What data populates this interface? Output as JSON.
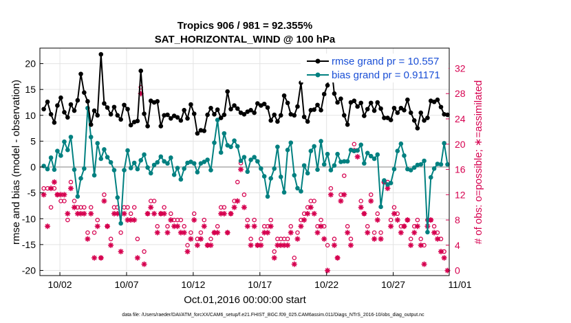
{
  "title": "Tropics 906 / 981 = 92.355%",
  "subtitle": "SAT_HORIZONTAL_WIND @ 100 hPa",
  "footer": "data file: /Users/raeder/DAI/ATM_forcXX/CAM6_setup/f.e21.FHIST_BGC.f09_025.CAM6assim.011/Diags_NTrS_2016-10/obs_diag_output.nc",
  "colors": {
    "rmse": "#000000",
    "bias": "#008080",
    "obs": "#d6004f",
    "zero_line": "#c0c0c0",
    "legend_text": "#1a4fd6"
  },
  "chart_data": {
    "type": "line",
    "xlabel": "Oct.01,2016 00:00:00 start",
    "ylabel_left": "rmse and bias (model - observation)",
    "ylabel_right": "# of obs: o=possible; ∗=assimilated",
    "xlim": [
      0.5,
      31.2
    ],
    "ylim_left": [
      -21,
      23
    ],
    "ylim_right": [
      -0.8,
      35.2
    ],
    "x_ticks": [
      {
        "v": 2,
        "label": "10/02"
      },
      {
        "v": 7,
        "label": "10/07"
      },
      {
        "v": 12,
        "label": "10/12"
      },
      {
        "v": 17,
        "label": "10/17"
      },
      {
        "v": 22,
        "label": "10/22"
      },
      {
        "v": 27,
        "label": "10/27"
      },
      {
        "v": 32,
        "label": "11/01"
      }
    ],
    "y_ticks_left": [
      -20,
      -15,
      -10,
      -5,
      0,
      5,
      10,
      15,
      20
    ],
    "y_ticks_right": [
      0,
      4,
      8,
      12,
      16,
      20,
      24,
      28,
      32
    ],
    "grid": true,
    "legend_position": "top-right",
    "x": [
      0.79,
      1.07,
      1.33,
      1.58,
      1.81,
      2.07,
      2.33,
      2.58,
      2.82,
      3.08,
      3.33,
      3.57,
      3.82,
      4.08,
      4.33,
      4.58,
      4.82,
      5.08,
      5.32,
      5.56,
      5.82,
      6.07,
      6.32,
      6.57,
      6.82,
      7.08,
      7.32,
      7.58,
      7.82,
      8.07,
      8.32,
      8.58,
      8.82,
      9.07,
      9.31,
      9.57,
      9.82,
      10.07,
      10.32,
      10.57,
      10.82,
      11.07,
      11.32,
      11.57,
      11.82,
      12.07,
      12.31,
      12.57,
      12.82,
      13.07,
      13.32,
      13.58,
      13.82,
      14.08,
      14.32,
      14.57,
      14.82,
      15.08,
      15.32,
      15.57,
      15.82,
      16.07,
      16.32,
      16.58,
      16.82,
      17.08,
      17.33,
      17.58,
      17.82,
      18.08,
      18.32,
      18.57,
      18.82,
      19.08,
      19.32,
      19.58,
      19.82,
      20.08,
      20.32,
      20.58,
      20.82,
      21.07,
      21.32,
      21.58,
      21.82,
      22.07,
      22.32,
      22.58,
      22.82,
      23.07,
      23.32,
      23.57,
      23.82,
      24.07,
      24.32,
      24.58,
      24.82,
      25.07,
      25.33,
      25.58,
      25.82,
      26.07,
      26.32,
      26.58,
      26.82,
      27.07,
      27.32,
      27.58,
      27.82,
      28.07,
      28.32,
      28.58,
      28.82,
      29.07,
      29.32,
      29.57,
      29.82,
      30.07,
      30.32,
      30.58,
      30.82,
      31.07
    ],
    "series": [
      {
        "name": "rmse grand pr = 10.557",
        "values": [
          11.2,
          12.6,
          10.2,
          8.6,
          11.9,
          13.4,
          10.6,
          9.6,
          12.1,
          10.9,
          12.9,
          18.0,
          14.4,
          12.7,
          8.2,
          10.9,
          10.0,
          21.8,
          12.3,
          11.5,
          10.2,
          11.6,
          10.0,
          9.2,
          12.0,
          11.2,
          8.1,
          8.7,
          8.9,
          18.6,
          10.3,
          7.9,
          12.8,
          12.5,
          12.7,
          7.9,
          10.0,
          10.1,
          9.4,
          9.9,
          9.6,
          9.0,
          11.0,
          9.4,
          12.1,
          10.3,
          6.5,
          7.1,
          7.0,
          10.1,
          11.4,
          10.2,
          11.1,
          9.5,
          10.1,
          14.6,
          11.2,
          11.9,
          11.3,
          10.5,
          10.2,
          10.7,
          11.0,
          10.5,
          12.3,
          11.9,
          12.2,
          11.5,
          9.0,
          10.1,
          8.8,
          10.0,
          13.8,
          12.4,
          10.2,
          10.0,
          11.7,
          16.3,
          9.7,
          8.8,
          11.0,
          11.1,
          12.0,
          11.0,
          14.1,
          15.8,
          20.6,
          14.2,
          12.5,
          13.2,
          10.0,
          8.2,
          12.5,
          12.8,
          11.7,
          12.4,
          9.9,
          11.2,
          12.4,
          10.9,
          12.5,
          11.3,
          9.5,
          9.5,
          9.1,
          11.4,
          10.5,
          11.4,
          11.0,
          13.0,
          10.5,
          9.0,
          7.5,
          10.5,
          9.0,
          9.5,
          12.8,
          12.6,
          13.0,
          11.6,
          10.2,
          10.1
        ]
      },
      {
        "name": "bias grand pr = 0.91171",
        "values": [
          0.2,
          -0.4,
          1.8,
          -0.5,
          3.1,
          2.2,
          4.9,
          3.3,
          5.8,
          -0.5,
          -5.7,
          -2.2,
          -0.3,
          11.4,
          5.8,
          -1.6,
          4.6,
          1.6,
          3.4,
          1.9,
          0.9,
          -0.6,
          -5.9,
          -10.9,
          -0.6,
          3.2,
          -0.2,
          0.8,
          -0.4,
          1.3,
          2.4,
          -0.1,
          -1.2,
          0.4,
          0.9,
          2.0,
          1.1,
          0.7,
          1.8,
          -1.5,
          -0.2,
          -2.4,
          -0.3,
          0.8,
          1.0,
          0.7,
          -1.0,
          0.7,
          1.0,
          1.4,
          -0.6,
          4.7,
          9.1,
          2.8,
          6.5,
          4.2,
          3.9,
          5.1,
          4.0,
          1.2,
          1.9,
          -0.9,
          1.4,
          1.9,
          1.1,
          -0.3,
          -1.8,
          -5.7,
          -2.2,
          -0.3,
          3.9,
          -1.9,
          -4.9,
          3.3,
          4.7,
          -1.6,
          -4.1,
          -4.7,
          0.3,
          -1.2,
          3.1,
          4.0,
          -0.5,
          5.0,
          0.5,
          2.5,
          -0.6,
          0.3,
          2.5,
          1.0,
          1.1,
          1.1,
          3.3,
          3.1,
          3.2,
          4.3,
          0.7,
          2.7,
          2.1,
          1.6,
          2.4,
          -7.7,
          -2.6,
          -3.4,
          -3.1,
          -0.4,
          3.1,
          4.5,
          2.2,
          -0.4,
          -0.6,
          -0.1,
          0.4,
          0.5,
          1.2,
          -12.6,
          -2.0,
          -0.3,
          0.6,
          0.5,
          4.6,
          0.5
        ]
      }
    ],
    "obs_possible": [
      {
        "x": 0.79,
        "y": 13
      },
      {
        "x": 1.07,
        "y": 13
      },
      {
        "x": 1.33,
        "y": 10
      },
      {
        "x": 1.58,
        "y": 13
      },
      {
        "x": 1.81,
        "y": 12
      },
      {
        "x": 2.07,
        "y": 11
      },
      {
        "x": 2.33,
        "y": 11
      },
      {
        "x": 2.58,
        "y": 8
      },
      {
        "x": 2.82,
        "y": 14
      },
      {
        "x": 3.08,
        "y": 11
      },
      {
        "x": 3.33,
        "y": 10
      },
      {
        "x": 3.57,
        "y": 10
      },
      {
        "x": 3.82,
        "y": 10
      },
      {
        "x": 4.08,
        "y": 6
      },
      {
        "x": 4.33,
        "y": 10
      },
      {
        "x": 4.58,
        "y": 6
      },
      {
        "x": 4.82,
        "y": 8
      },
      {
        "x": 5.08,
        "y": 2
      },
      {
        "x": 5.32,
        "y": 12
      },
      {
        "x": 5.56,
        "y": 7
      },
      {
        "x": 5.82,
        "y": 5
      },
      {
        "x": 6.07,
        "y": 10
      },
      {
        "x": 6.32,
        "y": 10
      },
      {
        "x": 6.57,
        "y": 6
      },
      {
        "x": 6.82,
        "y": 10
      },
      {
        "x": 7.08,
        "y": 10
      },
      {
        "x": 7.32,
        "y": 9
      },
      {
        "x": 7.58,
        "y": 10
      },
      {
        "x": 7.82,
        "y": 5
      },
      {
        "x": 8.07,
        "y": 29
      },
      {
        "x": 8.32,
        "y": 3
      },
      {
        "x": 8.58,
        "y": 9
      },
      {
        "x": 8.82,
        "y": 11
      },
      {
        "x": 9.07,
        "y": 11
      },
      {
        "x": 9.31,
        "y": 7
      },
      {
        "x": 9.57,
        "y": 9
      },
      {
        "x": 9.82,
        "y": 10
      },
      {
        "x": 10.07,
        "y": 7
      },
      {
        "x": 10.32,
        "y": 9
      },
      {
        "x": 10.57,
        "y": 8
      },
      {
        "x": 10.82,
        "y": 8
      },
      {
        "x": 11.07,
        "y": 8
      },
      {
        "x": 11.32,
        "y": 7
      },
      {
        "x": 11.57,
        "y": 4
      },
      {
        "x": 11.82,
        "y": 6
      },
      {
        "x": 12.07,
        "y": 9
      },
      {
        "x": 12.31,
        "y": 5
      },
      {
        "x": 12.57,
        "y": 6
      },
      {
        "x": 12.82,
        "y": 8
      },
      {
        "x": 13.07,
        "y": 4
      },
      {
        "x": 13.32,
        "y": 5
      },
      {
        "x": 13.58,
        "y": 6
      },
      {
        "x": 13.82,
        "y": 7
      },
      {
        "x": 14.08,
        "y": 10
      },
      {
        "x": 14.32,
        "y": 10
      },
      {
        "x": 14.57,
        "y": 6
      },
      {
        "x": 14.82,
        "y": 9
      },
      {
        "x": 15.08,
        "y": 11
      },
      {
        "x": 15.32,
        "y": 14
      },
      {
        "x": 15.57,
        "y": 17
      },
      {
        "x": 15.82,
        "y": 12
      },
      {
        "x": 16.07,
        "y": 8
      },
      {
        "x": 16.32,
        "y": 5
      },
      {
        "x": 16.58,
        "y": 8
      },
      {
        "x": 16.82,
        "y": 4
      },
      {
        "x": 17.08,
        "y": 5
      },
      {
        "x": 17.33,
        "y": 7
      },
      {
        "x": 17.58,
        "y": 7
      },
      {
        "x": 17.82,
        "y": 8
      },
      {
        "x": 18.08,
        "y": 3
      },
      {
        "x": 18.32,
        "y": 5
      },
      {
        "x": 18.57,
        "y": 5
      },
      {
        "x": 18.82,
        "y": 5
      },
      {
        "x": 19.08,
        "y": 5
      },
      {
        "x": 19.32,
        "y": 7
      },
      {
        "x": 19.58,
        "y": 2
      },
      {
        "x": 19.82,
        "y": 6
      },
      {
        "x": 20.08,
        "y": 8
      },
      {
        "x": 20.32,
        "y": 9
      },
      {
        "x": 20.58,
        "y": 10
      },
      {
        "x": 20.82,
        "y": 11
      },
      {
        "x": 21.07,
        "y": 11
      },
      {
        "x": 21.32,
        "y": 7
      },
      {
        "x": 21.58,
        "y": 8
      },
      {
        "x": 21.82,
        "y": 7
      },
      {
        "x": 22.07,
        "y": 4
      },
      {
        "x": 22.32,
        "y": 13
      },
      {
        "x": 22.58,
        "y": 5
      },
      {
        "x": 22.82,
        "y": 2
      },
      {
        "x": 23.07,
        "y": 12
      },
      {
        "x": 23.32,
        "y": 15
      },
      {
        "x": 23.57,
        "y": 7
      },
      {
        "x": 23.82,
        "y": 5
      },
      {
        "x": 24.07,
        "y": 20
      },
      {
        "x": 24.32,
        "y": 19
      },
      {
        "x": 24.58,
        "y": 11
      },
      {
        "x": 24.82,
        "y": 9
      },
      {
        "x": 25.07,
        "y": 7
      },
      {
        "x": 25.33,
        "y": 12
      },
      {
        "x": 25.58,
        "y": 6
      },
      {
        "x": 25.82,
        "y": 9
      },
      {
        "x": 26.07,
        "y": 6
      },
      {
        "x": 26.32,
        "y": 14
      },
      {
        "x": 26.58,
        "y": 14
      },
      {
        "x": 26.82,
        "y": 8
      },
      {
        "x": 27.07,
        "y": 10
      },
      {
        "x": 27.32,
        "y": 9
      },
      {
        "x": 27.58,
        "y": 7
      },
      {
        "x": 27.82,
        "y": 7
      },
      {
        "x": 28.07,
        "y": 8
      },
      {
        "x": 28.32,
        "y": 5
      },
      {
        "x": 28.58,
        "y": 7
      },
      {
        "x": 28.82,
        "y": 8
      },
      {
        "x": 29.07,
        "y": 5
      },
      {
        "x": 29.32,
        "y": 4
      },
      {
        "x": 29.57,
        "y": 8
      },
      {
        "x": 29.82,
        "y": 8
      },
      {
        "x": 30.07,
        "y": 7
      },
      {
        "x": 30.32,
        "y": 6
      },
      {
        "x": 30.58,
        "y": 5
      },
      {
        "x": 30.82,
        "y": 3
      }
    ],
    "obs_assimilated": [
      {
        "x": 0.79,
        "y": 12
      },
      {
        "x": 1.07,
        "y": 7
      },
      {
        "x": 1.33,
        "y": 13
      },
      {
        "x": 1.58,
        "y": 14
      },
      {
        "x": 1.81,
        "y": 12
      },
      {
        "x": 2.07,
        "y": 12
      },
      {
        "x": 2.33,
        "y": 12
      },
      {
        "x": 2.58,
        "y": 9
      },
      {
        "x": 2.82,
        "y": 13
      },
      {
        "x": 3.08,
        "y": 10
      },
      {
        "x": 3.33,
        "y": 9
      },
      {
        "x": 3.57,
        "y": 9
      },
      {
        "x": 3.82,
        "y": 9
      },
      {
        "x": 4.08,
        "y": 5
      },
      {
        "x": 4.33,
        "y": 9
      },
      {
        "x": 4.58,
        "y": 2
      },
      {
        "x": 4.82,
        "y": 7
      },
      {
        "x": 5.08,
        "y": 2
      },
      {
        "x": 5.32,
        "y": 11
      },
      {
        "x": 5.56,
        "y": 7
      },
      {
        "x": 5.82,
        "y": 4
      },
      {
        "x": 6.07,
        "y": 9
      },
      {
        "x": 6.32,
        "y": 9
      },
      {
        "x": 6.57,
        "y": 3
      },
      {
        "x": 6.82,
        "y": 9
      },
      {
        "x": 7.08,
        "y": 8
      },
      {
        "x": 7.32,
        "y": 8
      },
      {
        "x": 7.58,
        "y": 8
      },
      {
        "x": 7.82,
        "y": 2
      },
      {
        "x": 8.07,
        "y": 28
      },
      {
        "x": 8.32,
        "y": 1
      },
      {
        "x": 8.58,
        "y": 9
      },
      {
        "x": 8.82,
        "y": 10
      },
      {
        "x": 9.07,
        "y": 9
      },
      {
        "x": 9.31,
        "y": 6
      },
      {
        "x": 9.57,
        "y": 9
      },
      {
        "x": 9.82,
        "y": 9
      },
      {
        "x": 10.07,
        "y": 6
      },
      {
        "x": 10.32,
        "y": 8
      },
      {
        "x": 10.57,
        "y": 7
      },
      {
        "x": 10.82,
        "y": 7
      },
      {
        "x": 11.07,
        "y": 6
      },
      {
        "x": 11.32,
        "y": 6
      },
      {
        "x": 11.57,
        "y": 3
      },
      {
        "x": 11.82,
        "y": 5
      },
      {
        "x": 12.07,
        "y": 8
      },
      {
        "x": 12.31,
        "y": 4
      },
      {
        "x": 12.57,
        "y": 5
      },
      {
        "x": 12.82,
        "y": 7
      },
      {
        "x": 13.07,
        "y": 4
      },
      {
        "x": 13.32,
        "y": 4
      },
      {
        "x": 13.58,
        "y": 6
      },
      {
        "x": 13.82,
        "y": 6
      },
      {
        "x": 14.08,
        "y": 9
      },
      {
        "x": 14.32,
        "y": 9
      },
      {
        "x": 14.57,
        "y": 6
      },
      {
        "x": 14.82,
        "y": 9
      },
      {
        "x": 15.08,
        "y": 10
      },
      {
        "x": 15.32,
        "y": 11
      },
      {
        "x": 15.57,
        "y": 16
      },
      {
        "x": 15.82,
        "y": 10
      },
      {
        "x": 16.07,
        "y": 7
      },
      {
        "x": 16.32,
        "y": 4
      },
      {
        "x": 16.58,
        "y": 7
      },
      {
        "x": 16.82,
        "y": 4
      },
      {
        "x": 17.08,
        "y": 4
      },
      {
        "x": 17.33,
        "y": 6
      },
      {
        "x": 17.58,
        "y": 6
      },
      {
        "x": 17.82,
        "y": 7
      },
      {
        "x": 18.08,
        "y": 2
      },
      {
        "x": 18.32,
        "y": 4
      },
      {
        "x": 18.57,
        "y": 4
      },
      {
        "x": 18.82,
        "y": 4
      },
      {
        "x": 19.08,
        "y": 4
      },
      {
        "x": 19.32,
        "y": 6
      },
      {
        "x": 19.58,
        "y": 1
      },
      {
        "x": 19.82,
        "y": 5
      },
      {
        "x": 20.08,
        "y": 7
      },
      {
        "x": 20.32,
        "y": 8
      },
      {
        "x": 20.58,
        "y": 9
      },
      {
        "x": 20.82,
        "y": 10
      },
      {
        "x": 21.07,
        "y": 9
      },
      {
        "x": 21.32,
        "y": 6
      },
      {
        "x": 21.58,
        "y": 7
      },
      {
        "x": 21.82,
        "y": 5
      },
      {
        "x": 22.07,
        "y": 0
      },
      {
        "x": 22.32,
        "y": 12
      },
      {
        "x": 22.58,
        "y": 4
      },
      {
        "x": 22.82,
        "y": 2
      },
      {
        "x": 23.07,
        "y": 11
      },
      {
        "x": 23.32,
        "y": 12
      },
      {
        "x": 23.57,
        "y": 6
      },
      {
        "x": 23.82,
        "y": 4
      },
      {
        "x": 24.07,
        "y": 19
      },
      {
        "x": 24.32,
        "y": 18
      },
      {
        "x": 24.58,
        "y": 10
      },
      {
        "x": 24.82,
        "y": 9
      },
      {
        "x": 25.07,
        "y": 6
      },
      {
        "x": 25.33,
        "y": 11
      },
      {
        "x": 25.58,
        "y": 5
      },
      {
        "x": 25.82,
        "y": 8
      },
      {
        "x": 26.07,
        "y": 5
      },
      {
        "x": 26.32,
        "y": 14
      },
      {
        "x": 26.58,
        "y": 13
      },
      {
        "x": 26.82,
        "y": 7
      },
      {
        "x": 27.07,
        "y": 9
      },
      {
        "x": 27.32,
        "y": 8
      },
      {
        "x": 27.58,
        "y": 6
      },
      {
        "x": 27.82,
        "y": 7
      },
      {
        "x": 28.07,
        "y": 8
      },
      {
        "x": 28.32,
        "y": 4
      },
      {
        "x": 28.58,
        "y": 6
      },
      {
        "x": 28.82,
        "y": 7
      },
      {
        "x": 29.07,
        "y": 4
      },
      {
        "x": 29.32,
        "y": 1
      },
      {
        "x": 29.57,
        "y": 7
      },
      {
        "x": 29.82,
        "y": 8
      },
      {
        "x": 30.07,
        "y": 6
      },
      {
        "x": 30.32,
        "y": 5
      },
      {
        "x": 30.58,
        "y": 3
      },
      {
        "x": 30.82,
        "y": 2
      },
      {
        "x": 31.07,
        "y": 0
      }
    ]
  }
}
